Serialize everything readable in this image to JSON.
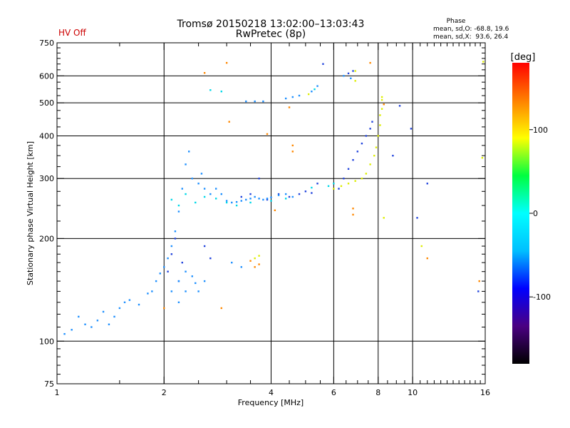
{
  "status": {
    "hv_label": "HV Off",
    "hv_color": "#cc0000"
  },
  "chart_data": {
    "type": "scatter",
    "title": "Tromsø 20150218 13:02:00–13:03:43",
    "subtitle": "RwPretec (8p)",
    "xlabel": "Frequency [MHz]",
    "ylabel": "Stationary phase Virtual Height [km]",
    "x_scale": "log",
    "y_scale": "log",
    "xlim": [
      1,
      16
    ],
    "ylim": [
      75,
      750
    ],
    "x_ticks": [
      1,
      2,
      4,
      6,
      8,
      10,
      16
    ],
    "y_ticks": [
      75,
      100,
      200,
      300,
      400,
      500,
      600,
      750
    ],
    "grid_x": [
      2,
      4,
      6,
      8,
      10
    ],
    "grid_y": [
      100,
      200,
      300,
      400,
      500,
      600
    ],
    "grid": true,
    "phase_stats": {
      "heading": "Phase",
      "line_o": "mean, sd,O: -68.8, 19.6",
      "line_x": "mean, sd,X:  93.6, 26.4"
    },
    "colorbar": {
      "unit_label": "[deg]",
      "range": [
        -180,
        180
      ],
      "ticks": [
        100,
        0,
        -100
      ],
      "stops": [
        "#000000",
        "#4b0082",
        "#0000ff",
        "#00bfff",
        "#00ffff",
        "#00ff40",
        "#ffff00",
        "#ff8000",
        "#ff0000"
      ]
    },
    "series": [
      {
        "phase_deg": -95,
        "color": "#2244dd",
        "points": [
          [
            2.05,
            160
          ],
          [
            2.1,
            180
          ],
          [
            2.15,
            200
          ],
          [
            2.2,
            150
          ],
          [
            2.25,
            170
          ],
          [
            2.6,
            190
          ],
          [
            2.7,
            175
          ],
          [
            3.3,
            265
          ],
          [
            3.5,
            270
          ],
          [
            3.7,
            300
          ],
          [
            3.9,
            260
          ],
          [
            4.2,
            270
          ],
          [
            4.5,
            265
          ],
          [
            4.8,
            270
          ],
          [
            5.0,
            275
          ],
          [
            5.2,
            272
          ],
          [
            5.4,
            290
          ],
          [
            6.2,
            280
          ],
          [
            6.4,
            300
          ],
          [
            6.6,
            320
          ],
          [
            6.8,
            340
          ],
          [
            7.0,
            360
          ],
          [
            7.2,
            380
          ],
          [
            7.4,
            400
          ],
          [
            7.6,
            420
          ],
          [
            7.7,
            440
          ],
          [
            6.6,
            610
          ],
          [
            6.8,
            620
          ],
          [
            5.6,
            650
          ],
          [
            8.8,
            350
          ],
          [
            9.2,
            490
          ],
          [
            9.9,
            420
          ],
          [
            10.3,
            230
          ],
          [
            11.0,
            290
          ],
          [
            15.3,
            140
          ]
        ]
      },
      {
        "phase_deg": -60,
        "color": "#1e90ff",
        "points": [
          [
            1.05,
            105
          ],
          [
            1.1,
            108
          ],
          [
            1.15,
            118
          ],
          [
            1.2,
            112
          ],
          [
            1.25,
            110
          ],
          [
            1.3,
            115
          ],
          [
            1.35,
            122
          ],
          [
            1.4,
            112
          ],
          [
            1.45,
            118
          ],
          [
            1.5,
            125
          ],
          [
            1.55,
            130
          ],
          [
            1.6,
            132
          ],
          [
            1.7,
            128
          ],
          [
            1.8,
            138
          ],
          [
            1.85,
            140
          ],
          [
            1.9,
            150
          ],
          [
            1.95,
            158
          ],
          [
            2.0,
            165
          ],
          [
            2.05,
            175
          ],
          [
            2.1,
            190
          ],
          [
            2.15,
            210
          ],
          [
            2.2,
            240
          ],
          [
            2.25,
            280
          ],
          [
            2.3,
            330
          ],
          [
            2.35,
            360
          ],
          [
            2.4,
            300
          ],
          [
            2.5,
            290
          ],
          [
            2.55,
            310
          ],
          [
            2.6,
            280
          ],
          [
            2.7,
            270
          ],
          [
            2.8,
            280
          ],
          [
            2.9,
            270
          ],
          [
            3.0,
            258
          ],
          [
            3.1,
            255
          ],
          [
            3.2,
            256
          ],
          [
            3.3,
            258
          ],
          [
            3.4,
            260
          ],
          [
            3.5,
            262
          ],
          [
            3.6,
            265
          ],
          [
            3.7,
            262
          ],
          [
            3.8,
            260
          ],
          [
            3.9,
            262
          ],
          [
            4.0,
            264
          ],
          [
            4.2,
            268
          ],
          [
            4.4,
            270
          ],
          [
            4.6,
            265
          ],
          [
            3.1,
            170
          ],
          [
            3.3,
            165
          ],
          [
            2.2,
            150
          ],
          [
            2.3,
            160
          ],
          [
            2.4,
            155
          ],
          [
            2.45,
            148
          ],
          [
            2.5,
            140
          ],
          [
            2.6,
            150
          ],
          [
            2.1,
            140
          ],
          [
            2.2,
            130
          ],
          [
            2.3,
            140
          ],
          [
            3.4,
            505
          ],
          [
            3.6,
            505
          ],
          [
            3.8,
            505
          ],
          [
            4.4,
            515
          ],
          [
            4.6,
            520
          ],
          [
            4.8,
            525
          ],
          [
            5.2,
            540
          ],
          [
            5.4,
            560
          ],
          [
            6.4,
            600
          ],
          [
            6.7,
            590
          ]
        ]
      },
      {
        "phase_deg": -20,
        "color": "#00d8e8",
        "points": [
          [
            2.1,
            260
          ],
          [
            2.2,
            250
          ],
          [
            2.3,
            270
          ],
          [
            2.45,
            255
          ],
          [
            2.6,
            265
          ],
          [
            2.8,
            262
          ],
          [
            3.0,
            255
          ],
          [
            3.2,
            250
          ],
          [
            3.5,
            255
          ],
          [
            4.0,
            258
          ],
          [
            4.4,
            262
          ],
          [
            2.7,
            545
          ],
          [
            2.9,
            540
          ],
          [
            5.3,
            548
          ],
          [
            5.8,
            285
          ],
          [
            6.0,
            290
          ],
          [
            5.2,
            282
          ]
        ]
      },
      {
        "phase_deg": 110,
        "color": "#ddee00",
        "points": [
          [
            6.0,
            280
          ],
          [
            6.3,
            285
          ],
          [
            6.6,
            290
          ],
          [
            6.9,
            295
          ],
          [
            7.2,
            300
          ],
          [
            7.4,
            310
          ],
          [
            7.6,
            330
          ],
          [
            7.8,
            350
          ],
          [
            7.9,
            370
          ],
          [
            8.0,
            400
          ],
          [
            8.1,
            430
          ],
          [
            8.1,
            460
          ],
          [
            8.2,
            480
          ],
          [
            8.2,
            510
          ],
          [
            8.2,
            520
          ],
          [
            3.6,
            175
          ],
          [
            3.7,
            178
          ],
          [
            6.9,
            580
          ],
          [
            6.9,
            620
          ],
          [
            5.1,
            530
          ],
          [
            8.3,
            230
          ],
          [
            10.6,
            190
          ],
          [
            15.8,
            660
          ],
          [
            15.7,
            345
          ]
        ]
      },
      {
        "phase_deg": 150,
        "color": "#ff8800",
        "points": [
          [
            2.6,
            612
          ],
          [
            3.0,
            655
          ],
          [
            3.05,
            440
          ],
          [
            3.5,
            172
          ],
          [
            3.6,
            165
          ],
          [
            3.7,
            168
          ],
          [
            3.9,
            405
          ],
          [
            4.1,
            242
          ],
          [
            4.5,
            485
          ],
          [
            4.6,
            375
          ],
          [
            4.6,
            360
          ],
          [
            6.8,
            245
          ],
          [
            6.8,
            235
          ],
          [
            7.6,
            655
          ],
          [
            8.3,
            495
          ],
          [
            11.0,
            175
          ],
          [
            15.4,
            150
          ],
          [
            2.0,
            125
          ],
          [
            2.9,
            125
          ]
        ]
      }
    ]
  }
}
